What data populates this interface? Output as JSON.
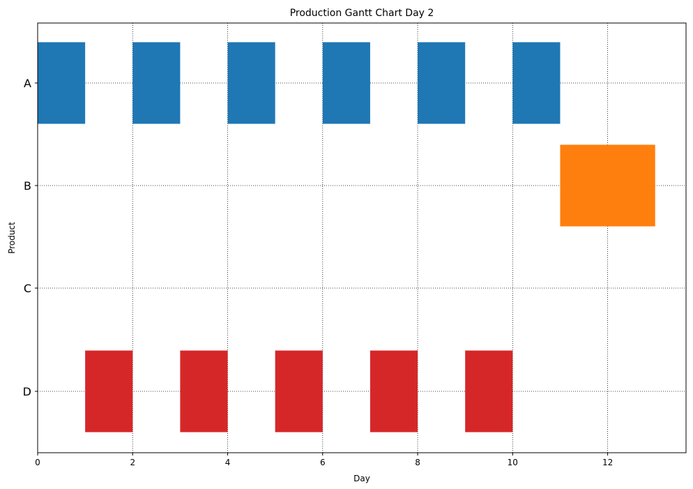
{
  "chart_data": {
    "type": "bar",
    "orientation": "horizontal",
    "title": "Production Gantt Chart Day 2",
    "xlabel": "Day",
    "ylabel": "Product",
    "xlim": [
      0,
      13.65
    ],
    "x_ticks": [
      0,
      2,
      4,
      6,
      8,
      10,
      12
    ],
    "categories": [
      "A",
      "B",
      "C",
      "D"
    ],
    "grid": {
      "on": true,
      "style": "dotted"
    },
    "series": [
      {
        "category": "A",
        "color": "#1f77b4",
        "tasks": [
          {
            "start": 0,
            "end": 1
          },
          {
            "start": 2,
            "end": 3
          },
          {
            "start": 4,
            "end": 5
          },
          {
            "start": 6,
            "end": 7
          },
          {
            "start": 8,
            "end": 9
          },
          {
            "start": 10,
            "end": 11
          }
        ]
      },
      {
        "category": "B",
        "color": "#ff7f0e",
        "tasks": [
          {
            "start": 11,
            "end": 13
          }
        ]
      },
      {
        "category": "C",
        "color": "#2ca02c",
        "tasks": []
      },
      {
        "category": "D",
        "color": "#d62728",
        "tasks": [
          {
            "start": 1,
            "end": 2
          },
          {
            "start": 3,
            "end": 4
          },
          {
            "start": 5,
            "end": 6
          },
          {
            "start": 7,
            "end": 8
          },
          {
            "start": 9,
            "end": 10
          }
        ]
      }
    ]
  }
}
